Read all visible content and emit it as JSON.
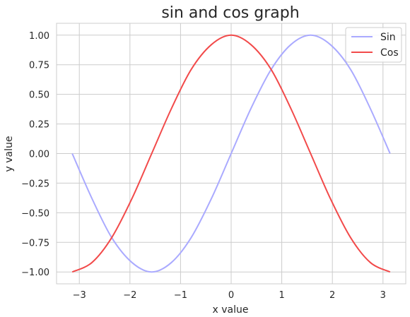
{
  "chart_data": {
    "type": "line",
    "title": "sin and cos graph",
    "xlabel": "x value",
    "ylabel": "y value",
    "xlim": [
      -3.45,
      3.45
    ],
    "ylim": [
      -1.1,
      1.1
    ],
    "x_ticks": [
      -3,
      -2,
      -1,
      0,
      1,
      2,
      3
    ],
    "x_tick_labels": [
      "−3",
      "−2",
      "−1",
      "0",
      "1",
      "2",
      "3"
    ],
    "y_ticks": [
      -1.0,
      -0.75,
      -0.5,
      -0.25,
      0.0,
      0.25,
      0.5,
      0.75,
      1.0
    ],
    "y_tick_labels": [
      "−1.00",
      "−0.75",
      "−0.50",
      "−0.25",
      "0.00",
      "0.25",
      "0.50",
      "0.75",
      "1.00"
    ],
    "grid": true,
    "legend_position": "top-right",
    "x": [
      -3.14,
      -2.75,
      -2.36,
      -1.96,
      -1.57,
      -1.18,
      -0.79,
      -0.39,
      0.0,
      0.39,
      0.79,
      1.18,
      1.57,
      1.96,
      2.36,
      2.75,
      3.14
    ],
    "series": [
      {
        "name": "Sin",
        "color": "#aaaaff",
        "values": [
          0.0,
          -0.38,
          -0.71,
          -0.92,
          -1.0,
          -0.92,
          -0.71,
          -0.38,
          0.0,
          0.38,
          0.71,
          0.92,
          1.0,
          0.92,
          0.71,
          0.38,
          0.0
        ]
      },
      {
        "name": "Cos",
        "color": "#f24a4a",
        "values": [
          -1.0,
          -0.92,
          -0.71,
          -0.38,
          0.0,
          0.38,
          0.71,
          0.92,
          1.0,
          0.92,
          0.71,
          0.38,
          0.0,
          -0.38,
          -0.71,
          -0.92,
          -1.0
        ]
      }
    ]
  }
}
